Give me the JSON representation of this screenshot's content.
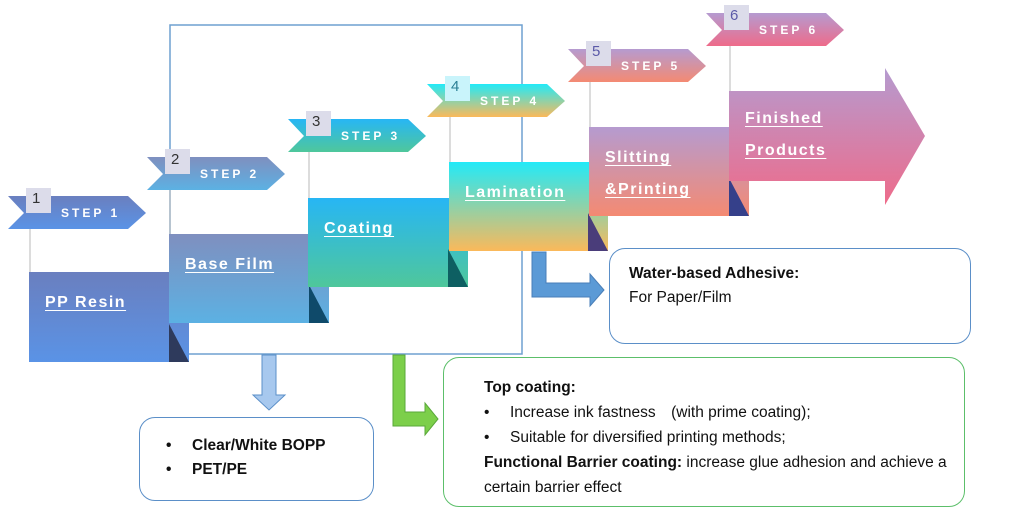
{
  "steps": [
    {
      "number": "1",
      "tag": "STEP 1",
      "label": "PP Resin",
      "colors": [
        "#6a7fbf",
        "#5a93e6"
      ]
    },
    {
      "number": "2",
      "tag": "STEP 2",
      "label": "Base Film",
      "colors": [
        "#7f8fbf",
        "#5cb1e3"
      ]
    },
    {
      "number": "3",
      "tag": "STEP 3",
      "label": "Coating",
      "colors": [
        "#27b6f5",
        "#4fc79b"
      ]
    },
    {
      "number": "4",
      "tag": "STEP 4",
      "label": "Lamination",
      "colors": [
        "#22eaf8",
        "#fbb95a"
      ]
    },
    {
      "number": "5",
      "tag": "STEP 5",
      "label_lines": [
        "Slitting",
        "&Printing"
      ],
      "colors": [
        "#b59bd0",
        "#f48a72"
      ]
    },
    {
      "number": "6",
      "tag": "STEP 6",
      "label_lines": [
        "Finished",
        "Products"
      ],
      "colors": [
        "#b59bd0",
        "#ee6b8a"
      ]
    }
  ],
  "notes": {
    "base_film": {
      "items": [
        "Clear/White BOPP",
        "PET/PE"
      ]
    },
    "coating": {
      "heading": "Top coating:",
      "items": [
        "Increase ink fastness　(with prime coating);",
        "Suitable for diversified printing methods;"
      ],
      "barrier_label": "Functional Barrier coating:",
      "barrier_text": " increase glue adhesion and achieve a certain barrier effect"
    },
    "lamination": {
      "heading": "Water-based Adhesive:",
      "text": "For Paper/Film"
    }
  },
  "colors": {
    "outline": "#6fa0d0",
    "blue_arrow": "#8fbbe6",
    "green_arrow": "#7ccf4a",
    "green_box": "#5cbf6a",
    "blue_box": "#5b8fc8"
  }
}
